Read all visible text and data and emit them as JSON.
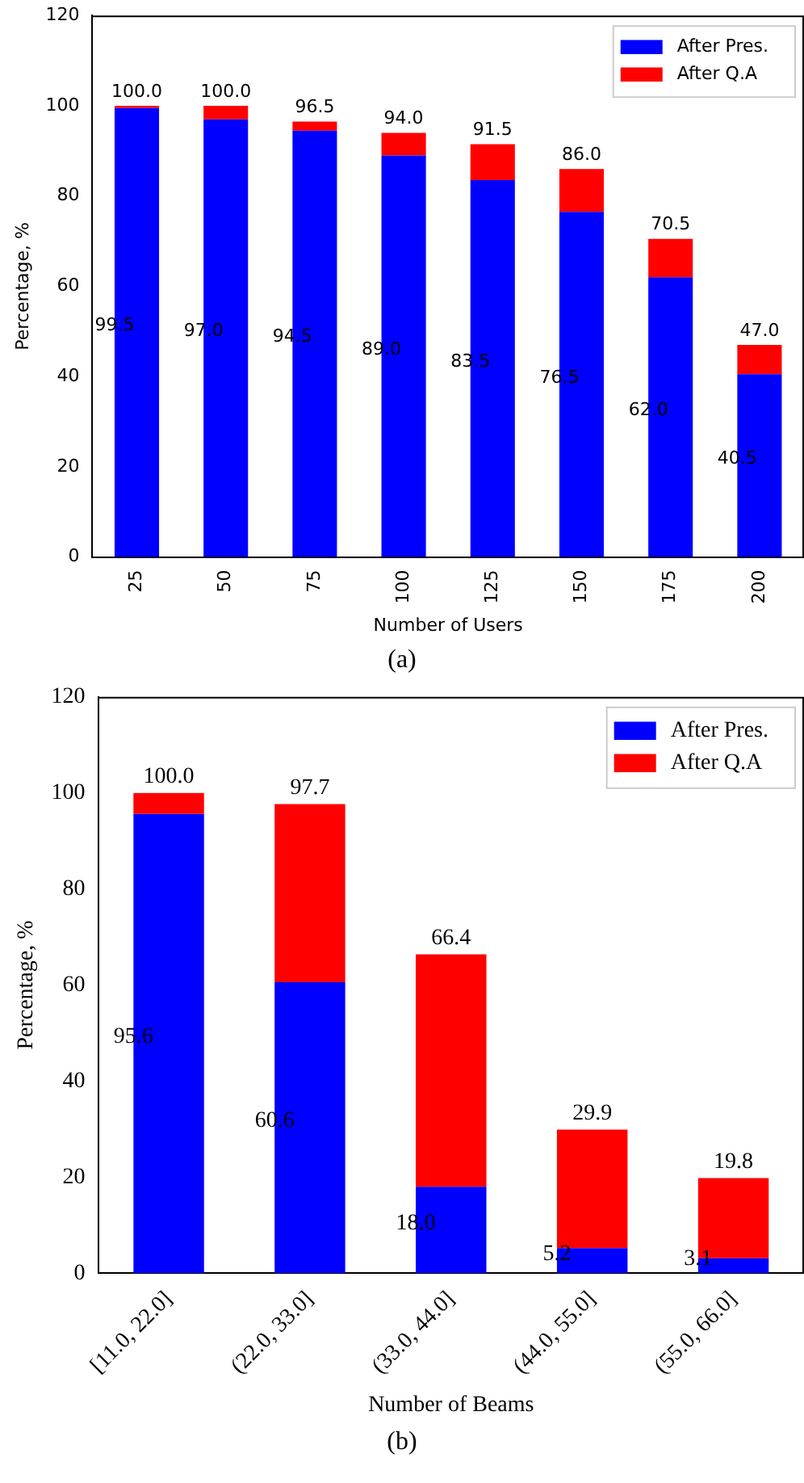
{
  "chart_data": [
    {
      "type": "bar",
      "stacked": true,
      "xlabel": "Number of Users",
      "ylabel": "Percentage, %",
      "categories": [
        "25",
        "50",
        "75",
        "100",
        "125",
        "150",
        "175",
        "200"
      ],
      "series": [
        {
          "name": "After Pres.",
          "color": "#0000ff",
          "values": [
            99.5,
            97.0,
            94.5,
            89.0,
            83.5,
            76.5,
            62.0,
            40.5
          ],
          "value_labels": [
            "99.5",
            "97.0",
            "94.5",
            "89.0",
            "83.5",
            "76.5",
            "62.0",
            "40.5"
          ]
        },
        {
          "name": "After Q.A",
          "color": "#ff0000",
          "values": [
            0.5,
            3.0,
            2.0,
            5.0,
            8.0,
            9.5,
            8.5,
            6.5
          ]
        }
      ],
      "totals": [
        "100.0",
        "100.0",
        "96.5",
        "94.0",
        "91.5",
        "86.0",
        "70.5",
        "47.0"
      ],
      "ylim": [
        0,
        120
      ],
      "yticks": [
        0,
        20,
        40,
        60,
        80,
        100,
        120
      ],
      "legend": "top right",
      "annotations": [
        "(a)"
      ]
    },
    {
      "type": "bar",
      "stacked": true,
      "xlabel": "Number of Beams",
      "ylabel": "Percentage, %",
      "categories": [
        "[11.0, 22.0]",
        "(22.0, 33.0]",
        "(33.0, 44.0]",
        "(44.0, 55.0]",
        "(55.0, 66.0]"
      ],
      "series": [
        {
          "name": "After Pres.",
          "color": "#0000ff",
          "values": [
            95.6,
            60.6,
            18.0,
            5.2,
            3.1
          ],
          "value_labels": [
            "95.6",
            "60.6",
            "18.0",
            "5.2",
            "3.1"
          ]
        },
        {
          "name": "After Q.A",
          "color": "#ff0000",
          "values": [
            4.4,
            37.1,
            48.4,
            24.7,
            16.7
          ]
        }
      ],
      "totals": [
        "100.0",
        "97.7",
        "66.4",
        "29.9",
        "19.8"
      ],
      "ylim": [
        0,
        120
      ],
      "yticks": [
        0,
        20,
        40,
        60,
        80,
        100,
        120
      ],
      "legend": "top right",
      "annotations": [
        "(b)"
      ]
    }
  ]
}
